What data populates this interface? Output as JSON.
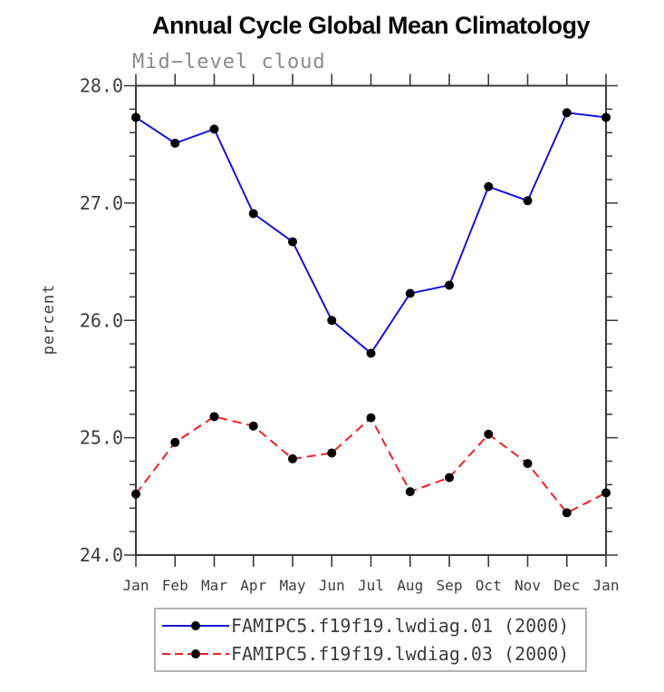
{
  "chart_data": {
    "type": "line",
    "title": "Annual Cycle Global Mean Climatology",
    "subtitle": "Mid−level cloud",
    "xlabel": "",
    "ylabel": "percent",
    "categories": [
      "Jan",
      "Feb",
      "Mar",
      "Apr",
      "May",
      "Jun",
      "Jul",
      "Aug",
      "Sep",
      "Oct",
      "Nov",
      "Dec",
      "Jan"
    ],
    "ylim": [
      24.0,
      28.0
    ],
    "ytick_major": [
      24.0,
      25.0,
      26.0,
      27.0,
      28.0
    ],
    "ytick_labels": [
      "24.0",
      "25.0",
      "26.0",
      "27.0",
      "28.0"
    ],
    "ytick_minor_interval": 0.2,
    "grid": false,
    "legend_position": "bottom",
    "series": [
      {
        "name": "FAMIPC5.f19f19.lwdiag.01 (2000)",
        "color": "#1414d7",
        "line_style": "solid",
        "marker": "filled-circle",
        "marker_color": "#000000",
        "values": [
          27.73,
          27.51,
          27.63,
          26.91,
          26.67,
          26.0,
          25.72,
          26.23,
          26.3,
          27.14,
          27.02,
          27.77,
          27.73
        ]
      },
      {
        "name": "FAMIPC5.f19f19.lwdiag.03 (2000)",
        "color": "#ee2222",
        "line_style": "dashed",
        "marker": "filled-circle",
        "marker_color": "#000000",
        "values": [
          24.52,
          24.96,
          25.18,
          25.1,
          24.82,
          24.87,
          25.17,
          24.54,
          24.66,
          25.03,
          24.78,
          24.36,
          24.53
        ]
      }
    ]
  },
  "colors": {
    "frame": "#3a3a3a",
    "tick_text": "#3d3d3d",
    "title_text": "#0a0a0a",
    "subtitle_text": "#8a8a8a",
    "legend_border": "#b4b4b4",
    "background": "#ffffff"
  }
}
